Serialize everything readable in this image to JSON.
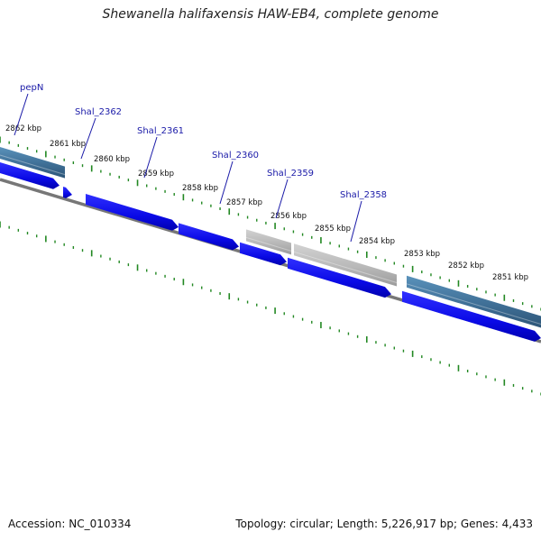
{
  "title": "Shewanella halifaxensis HAW-EB4, complete genome",
  "footer": {
    "accession": "Accession: NC_010334",
    "topology": "Topology: circular; Length: 5,226,917 bp; Genes: 4,433"
  },
  "ticks": [
    "2862 kbp",
    "2861 kbp",
    "2860 kbp",
    "2859 kbp",
    "2858 kbp",
    "2857 kbp",
    "2856 kbp",
    "2855 kbp",
    "2854 kbp",
    "2853 kbp",
    "2852 kbp",
    "2851 kbp"
  ],
  "genes": [
    "pepN",
    "Shal_2362",
    "Shal_2361",
    "Shal_2360",
    "Shal_2359",
    "Shal_2358"
  ],
  "colors": {
    "cds_blue": "#1010ee",
    "gene_steelblue": "#4a7ea6",
    "gene_gray": "#b4b4b4",
    "backbone": "#777777",
    "tick_green": "#228822",
    "label_blue": "#1a1aa8"
  }
}
